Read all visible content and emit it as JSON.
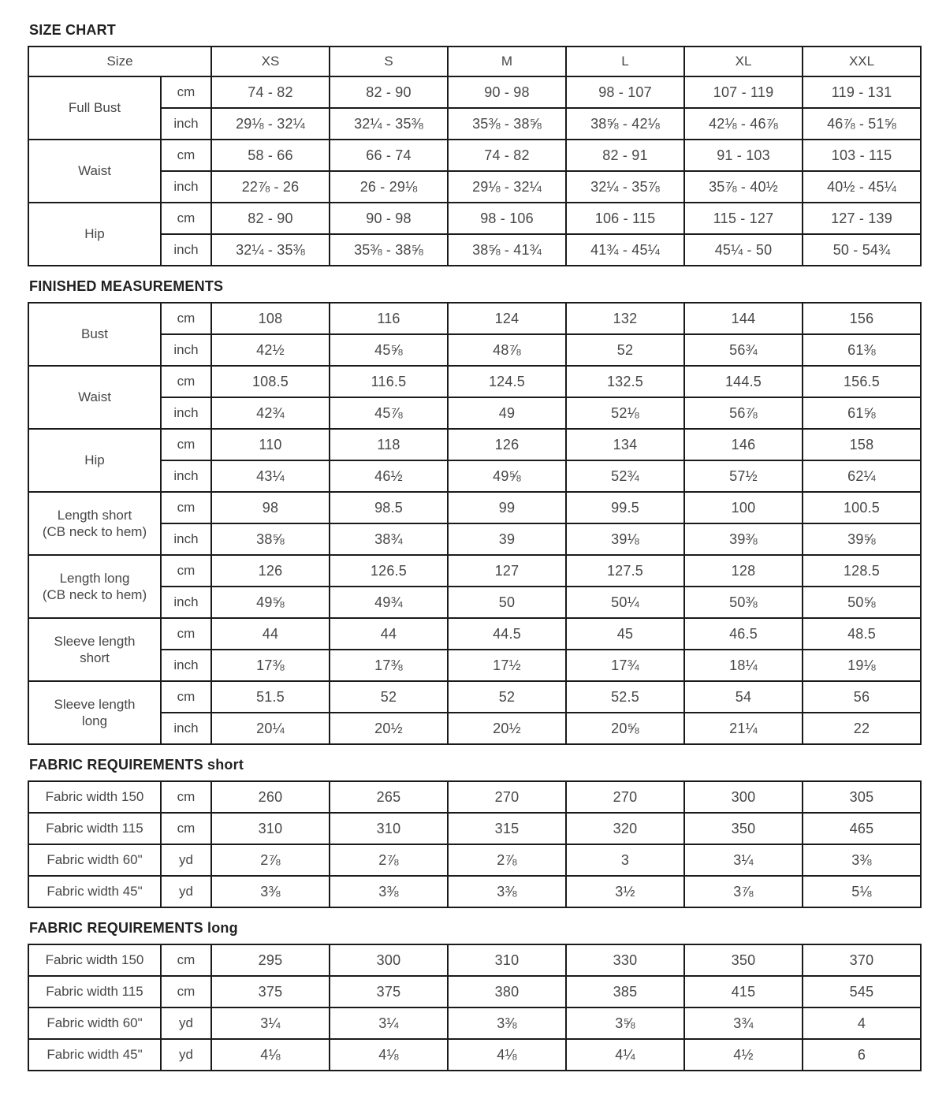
{
  "sizes": [
    "XS",
    "S",
    "M",
    "L",
    "XL",
    "XXL"
  ],
  "colors": {
    "border": "#1a1a1a",
    "heading_text": "#212121",
    "cell_text": "#474747",
    "background": "#ffffff"
  },
  "sections": [
    {
      "title": "SIZE CHART",
      "header_label": "Size",
      "groups": [
        {
          "label": "Full Bust",
          "rows": [
            {
              "unit": "cm",
              "values": [
                "74 - 82",
                "82 - 90",
                "90 - 98",
                "98 - 107",
                "107 - 119",
                "119 - 131"
              ]
            },
            {
              "unit": "inch",
              "values": [
                "29⅛ - 32¼",
                "32¼ - 35⅜",
                "35⅜ - 38⅝",
                "38⅝ - 42⅛",
                "42⅛ - 46⅞",
                "46⅞ - 51⅝"
              ]
            }
          ]
        },
        {
          "label": "Waist",
          "rows": [
            {
              "unit": "cm",
              "values": [
                "58 - 66",
                "66 - 74",
                "74 - 82",
                "82 - 91",
                "91 - 103",
                "103 - 115"
              ]
            },
            {
              "unit": "inch",
              "values": [
                "22⅞ - 26",
                "26 - 29⅛",
                "29⅛ - 32¼",
                "32¼ - 35⅞",
                "35⅞ - 40½",
                "40½ - 45¼"
              ]
            }
          ]
        },
        {
          "label": "Hip",
          "rows": [
            {
              "unit": "cm",
              "values": [
                "82 - 90",
                "90 - 98",
                "98 - 106",
                "106 - 115",
                "115 - 127",
                "127 - 139"
              ]
            },
            {
              "unit": "inch",
              "values": [
                "32¼ - 35⅜",
                "35⅜ - 38⅝",
                "38⅝ - 41¾",
                "41¾ - 45¼",
                "45¼ - 50",
                "50 - 54¾"
              ]
            }
          ]
        }
      ]
    },
    {
      "title": "FINISHED MEASUREMENTS",
      "groups": [
        {
          "label": "Bust",
          "rows": [
            {
              "unit": "cm",
              "values": [
                "108",
                "116",
                "124",
                "132",
                "144",
                "156"
              ]
            },
            {
              "unit": "inch",
              "values": [
                "42½",
                "45⅝",
                "48⅞",
                "52",
                "56¾",
                "61⅜"
              ]
            }
          ]
        },
        {
          "label": "Waist",
          "rows": [
            {
              "unit": "cm",
              "values": [
                "108.5",
                "116.5",
                "124.5",
                "132.5",
                "144.5",
                "156.5"
              ]
            },
            {
              "unit": "inch",
              "values": [
                "42¾",
                "45⅞",
                "49",
                "52⅛",
                "56⅞",
                "61⅝"
              ]
            }
          ]
        },
        {
          "label": "Hip",
          "rows": [
            {
              "unit": "cm",
              "values": [
                "110",
                "118",
                "126",
                "134",
                "146",
                "158"
              ]
            },
            {
              "unit": "inch",
              "values": [
                "43¼",
                "46½",
                "49⅝",
                "52¾",
                "57½",
                "62¼"
              ]
            }
          ]
        },
        {
          "label": "Length short\n(CB neck to hem)",
          "rows": [
            {
              "unit": "cm",
              "values": [
                "98",
                "98.5",
                "99",
                "99.5",
                "100",
                "100.5"
              ]
            },
            {
              "unit": "inch",
              "values": [
                "38⅝",
                "38¾",
                "39",
                "39⅛",
                "39⅜",
                "39⅝"
              ]
            }
          ]
        },
        {
          "label": "Length long\n(CB neck to hem)",
          "rows": [
            {
              "unit": "cm",
              "values": [
                "126",
                "126.5",
                "127",
                "127.5",
                "128",
                "128.5"
              ]
            },
            {
              "unit": "inch",
              "values": [
                "49⅝",
                "49¾",
                "50",
                "50¼",
                "50⅜",
                "50⅝"
              ]
            }
          ]
        },
        {
          "label": "Sleeve length\nshort",
          "rows": [
            {
              "unit": "cm",
              "values": [
                "44",
                "44",
                "44.5",
                "45",
                "46.5",
                "48.5"
              ]
            },
            {
              "unit": "inch",
              "values": [
                "17⅜",
                "17⅜",
                "17½",
                "17¾",
                "18¼",
                "19⅛"
              ]
            }
          ]
        },
        {
          "label": "Sleeve length\nlong",
          "rows": [
            {
              "unit": "cm",
              "values": [
                "51.5",
                "52",
                "52",
                "52.5",
                "54",
                "56"
              ]
            },
            {
              "unit": "inch",
              "values": [
                "20¼",
                "20½",
                "20½",
                "20⅝",
                "21¼",
                "22"
              ]
            }
          ]
        }
      ]
    },
    {
      "title": "FABRIC REQUIREMENTS short",
      "groups": [
        {
          "label": "Fabric width 150",
          "rows": [
            {
              "unit": "cm",
              "values": [
                "260",
                "265",
                "270",
                "270",
                "300",
                "305"
              ]
            }
          ]
        },
        {
          "label": "Fabric width 115",
          "rows": [
            {
              "unit": "cm",
              "values": [
                "310",
                "310",
                "315",
                "320",
                "350",
                "465"
              ]
            }
          ]
        },
        {
          "label": "Fabric width 60\"",
          "rows": [
            {
              "unit": "yd",
              "values": [
                "2⅞",
                "2⅞",
                "2⅞",
                "3",
                "3¼",
                "3⅜"
              ]
            }
          ]
        },
        {
          "label": "Fabric width 45\"",
          "rows": [
            {
              "unit": "yd",
              "values": [
                "3⅜",
                "3⅜",
                "3⅜",
                "3½",
                "3⅞",
                "5⅛"
              ]
            }
          ]
        }
      ]
    },
    {
      "title": "FABRIC REQUIREMENTS long",
      "groups": [
        {
          "label": "Fabric width 150",
          "rows": [
            {
              "unit": "cm",
              "values": [
                "295",
                "300",
                "310",
                "330",
                "350",
                "370"
              ]
            }
          ]
        },
        {
          "label": "Fabric width 115",
          "rows": [
            {
              "unit": "cm",
              "values": [
                "375",
                "375",
                "380",
                "385",
                "415",
                "545"
              ]
            }
          ]
        },
        {
          "label": "Fabric width 60\"",
          "rows": [
            {
              "unit": "yd",
              "values": [
                "3¼",
                "3¼",
                "3⅜",
                "3⅝",
                "3¾",
                "4"
              ]
            }
          ]
        },
        {
          "label": "Fabric width 45\"",
          "rows": [
            {
              "unit": "yd",
              "values": [
                "4⅛",
                "4⅛",
                "4⅛",
                "4¼",
                "4½",
                "6"
              ]
            }
          ]
        }
      ]
    }
  ]
}
